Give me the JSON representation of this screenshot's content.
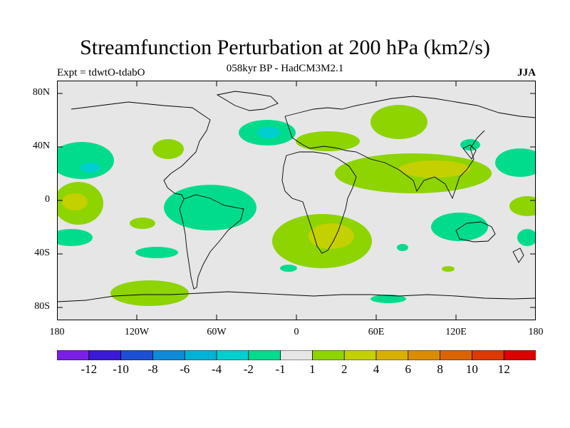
{
  "title": "Streamfunction Perturbation at 200 hPa (km2/s)",
  "subtitle": "058kyr BP - HadCM3M2.1",
  "expt": "Expt = tdwtO-tdabO",
  "season": "JJA",
  "lat_labels": [
    "80N",
    "40N",
    "0",
    "40S",
    "80S"
  ],
  "lon_labels": [
    "180",
    "120W",
    "60W",
    "0",
    "60E",
    "120E",
    "180"
  ],
  "colorbar": {
    "colors": [
      "#7b1fe6",
      "#3a1ad6",
      "#1b4fd4",
      "#0d8bd9",
      "#00b3d6",
      "#00cfd0",
      "#00dc8c",
      "#e6e6e6",
      "#8ed400",
      "#c4d000",
      "#d9b000",
      "#dc8c00",
      "#dc6400",
      "#dc3a00",
      "#dc0000"
    ],
    "labels": [
      "-12",
      "-10",
      "-8",
      "-6",
      "-4",
      "-2",
      "-1",
      "1",
      "2",
      "4",
      "6",
      "8",
      "10",
      "12"
    ]
  },
  "colors": {
    "background": "#e6e6e6",
    "coast": "#000000"
  }
}
